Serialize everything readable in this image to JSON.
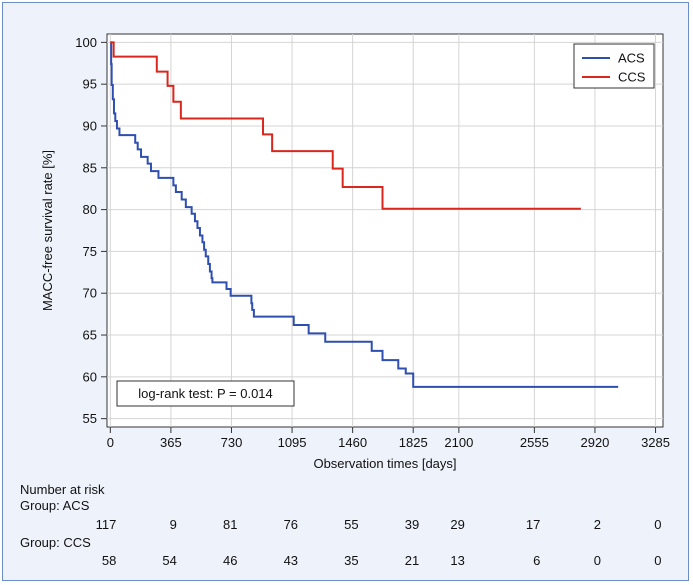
{
  "chart_data": {
    "type": "line",
    "subtype": "kaplan-meier",
    "xlabel": "Observation times [days]",
    "ylabel": "MACC-free survival rate [%]",
    "xlim": [
      -20,
      3330
    ],
    "ylim": [
      54,
      101
    ],
    "xticks": [
      0,
      365,
      730,
      1095,
      1460,
      1825,
      2100,
      2555,
      2920,
      3285
    ],
    "yticks": [
      55,
      60,
      65,
      70,
      75,
      80,
      85,
      90,
      95,
      100
    ],
    "grid": true,
    "legend_position": "top-right",
    "annotation": "log-rank test: P = 0.014",
    "series": [
      {
        "name": "ACS",
        "color": "#2f4fb0",
        "steps": [
          [
            0,
            100
          ],
          [
            5,
            97.4
          ],
          [
            8,
            94.9
          ],
          [
            15,
            93.2
          ],
          [
            22,
            91.5
          ],
          [
            30,
            90.6
          ],
          [
            40,
            89.7
          ],
          [
            55,
            88.9
          ],
          [
            150,
            88.0
          ],
          [
            165,
            87.2
          ],
          [
            185,
            86.3
          ],
          [
            225,
            85.5
          ],
          [
            245,
            84.6
          ],
          [
            290,
            83.8
          ],
          [
            380,
            82.9
          ],
          [
            395,
            82.1
          ],
          [
            430,
            81.2
          ],
          [
            455,
            80.3
          ],
          [
            490,
            79.5
          ],
          [
            510,
            78.6
          ],
          [
            525,
            77.8
          ],
          [
            540,
            76.9
          ],
          [
            555,
            76.1
          ],
          [
            565,
            75.2
          ],
          [
            575,
            74.4
          ],
          [
            590,
            73.5
          ],
          [
            600,
            72.6
          ],
          [
            610,
            71.8
          ],
          [
            615,
            71.3
          ],
          [
            700,
            70.5
          ],
          [
            725,
            69.7
          ],
          [
            850,
            68.8
          ],
          [
            855,
            68.0
          ],
          [
            865,
            67.2
          ],
          [
            1105,
            66.2
          ],
          [
            1195,
            65.2
          ],
          [
            1295,
            64.2
          ],
          [
            1575,
            63.1
          ],
          [
            1640,
            62.0
          ],
          [
            1735,
            61.0
          ],
          [
            1780,
            60.4
          ],
          [
            1825,
            58.8
          ],
          [
            3060,
            58.8
          ]
        ]
      },
      {
        "name": "CCS",
        "color": "#d9271e",
        "steps": [
          [
            0,
            100
          ],
          [
            20,
            98.3
          ],
          [
            280,
            96.5
          ],
          [
            345,
            94.8
          ],
          [
            380,
            92.9
          ],
          [
            425,
            90.9
          ],
          [
            920,
            89.0
          ],
          [
            975,
            87.0
          ],
          [
            1340,
            84.9
          ],
          [
            1400,
            82.7
          ],
          [
            1640,
            80.1
          ],
          [
            2835,
            80.1
          ]
        ]
      }
    ]
  },
  "risk_table": {
    "title": "Number at risk",
    "groups": [
      {
        "label": "Group: ACS",
        "values": [
          "117",
          "9",
          "81",
          "76",
          "55",
          "39",
          "29",
          "17",
          "2",
          "0"
        ]
      },
      {
        "label": "Group: CCS",
        "values": [
          "58",
          "54",
          "46",
          "43",
          "35",
          "21",
          "13",
          "6",
          "0",
          "0"
        ]
      }
    ]
  }
}
